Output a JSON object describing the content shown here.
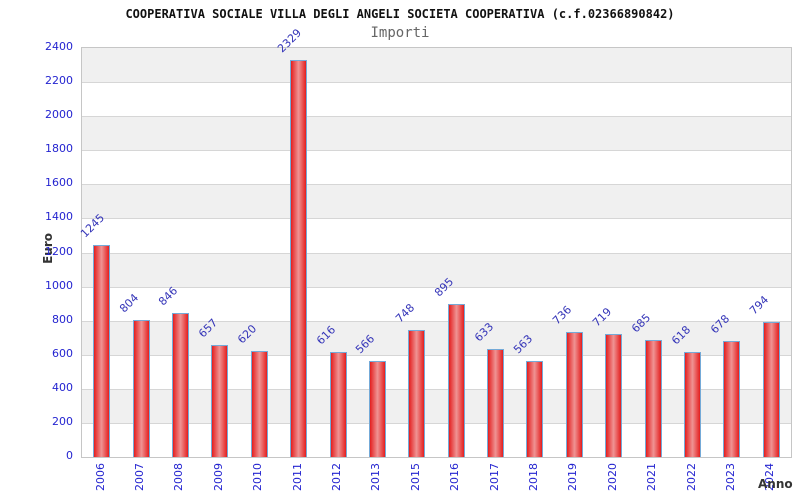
{
  "title": "COOPERATIVA SOCIALE VILLA DEGLI ANGELI SOCIETA COOPERATIVA (c.f.02366890842)",
  "subtitle": "Importi",
  "chart_data": {
    "type": "bar",
    "title": "Importi",
    "categories": [
      "2006",
      "2007",
      "2008",
      "2009",
      "2010",
      "2011",
      "2012",
      "2013",
      "2015",
      "2016",
      "2017",
      "2018",
      "2019",
      "2020",
      "2021",
      "2022",
      "2023",
      "2024"
    ],
    "values": [
      1245,
      804,
      846,
      657,
      620,
      2329,
      616,
      566,
      748,
      895,
      633,
      563,
      736,
      719,
      685,
      618,
      678,
      794
    ],
    "xlabel": "Anno",
    "ylabel": "Euro",
    "ylim": [
      0,
      2400
    ],
    "ytick_step": 200,
    "grid": true,
    "legend": "none",
    "band_fill": "alternating",
    "colors": {
      "bar_edge": "#e41e1e",
      "bar_center": "#ef9494",
      "bar_border": "#74aad8",
      "tick_label": "#2424d0",
      "value_label": "#3434b8",
      "band": "#f0f0f0",
      "gridline": "#d6d6d6",
      "plot_border": "#c6c6c6",
      "title_color": "#111111",
      "subtitle_color": "#666666",
      "axis_title_color": "#333333"
    }
  }
}
